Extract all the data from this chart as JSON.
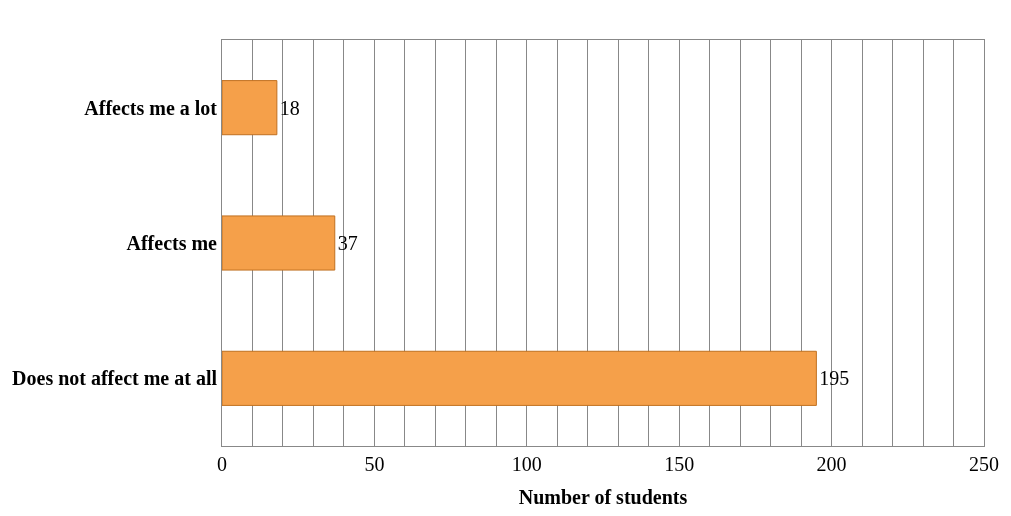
{
  "chart_data": {
    "type": "bar",
    "orientation": "horizontal",
    "xlabel": "Number of students",
    "categories": [
      "Affects me a lot",
      "Affects me",
      "Does not affect me at all"
    ],
    "values": [
      18,
      37,
      195
    ],
    "color": "#f5a04a",
    "data_labels": true,
    "xlim": [
      0,
      250
    ],
    "xticks": [
      0,
      {
        "value": 10,
        "label": null
      },
      {
        "value": 20,
        "label": null
      },
      {
        "value": 30,
        "label": null
      },
      {
        "value": 40,
        "label": null
      },
      50,
      {
        "value": 60,
        "label": null
      },
      {
        "value": 70,
        "label": null
      },
      {
        "value": 80,
        "label": null
      },
      {
        "value": 90,
        "label": null
      },
      100,
      {
        "value": 110,
        "label": null
      },
      {
        "value": 120,
        "label": null
      },
      {
        "value": 130,
        "label": null
      },
      {
        "value": 140,
        "label": null
      },
      150,
      {
        "value": 160,
        "label": null
      },
      {
        "value": 170,
        "label": null
      },
      {
        "value": 180,
        "label": null
      },
      {
        "value": 190,
        "label": null
      },
      200,
      {
        "value": 210,
        "label": null
      },
      {
        "value": 220,
        "label": null
      },
      {
        "value": 230,
        "label": null
      },
      {
        "value": 240,
        "label": null
      },
      250
    ],
    "grid": "x"
  }
}
